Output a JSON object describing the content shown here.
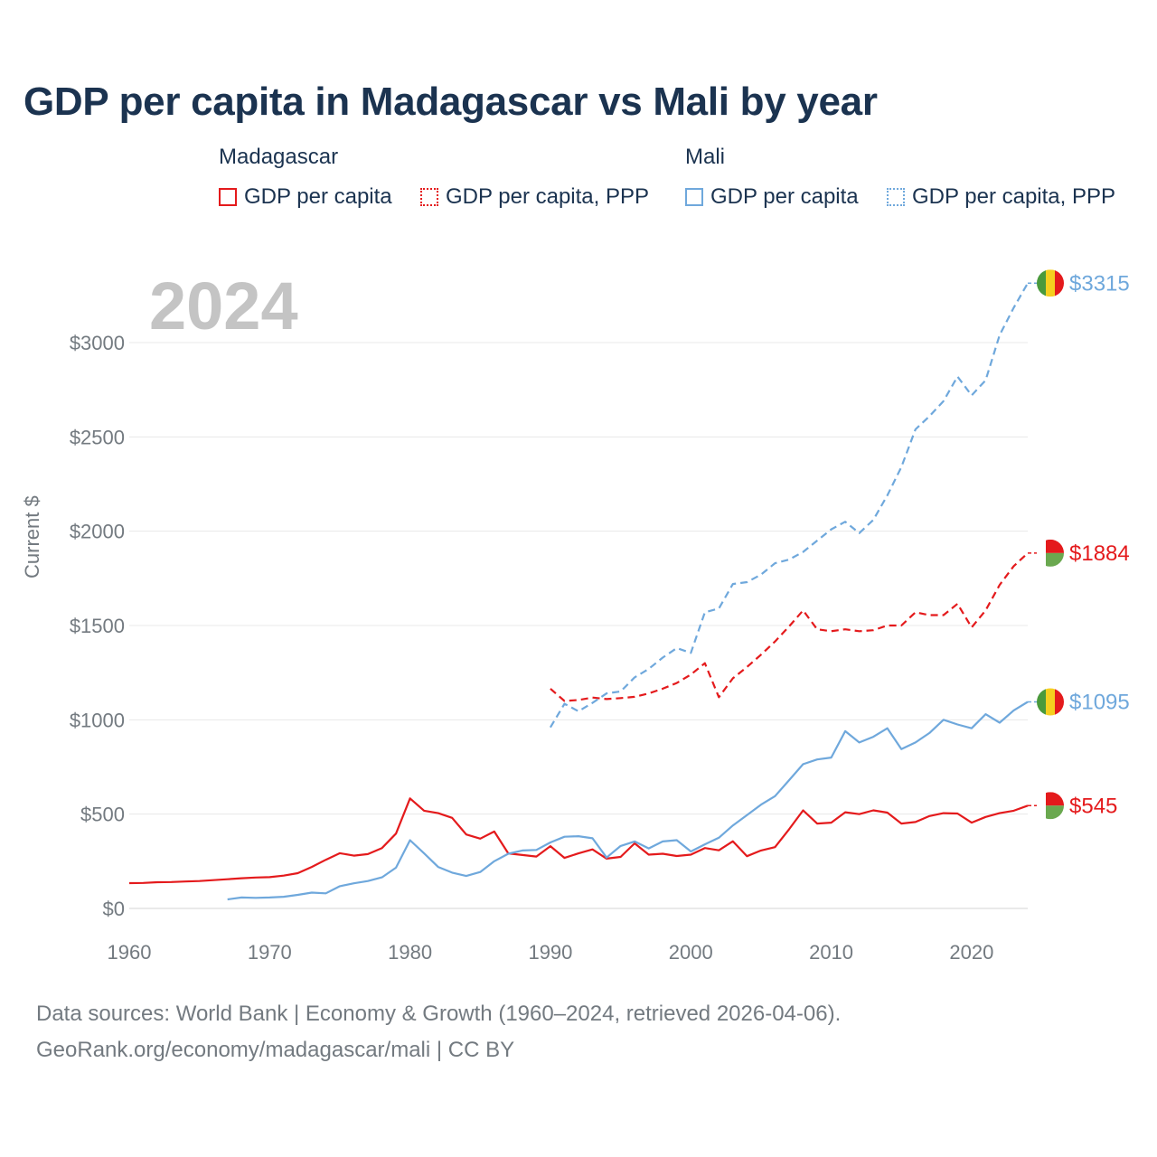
{
  "title": "GDP per capita in Madagascar vs Mali by year",
  "legend": {
    "madagascar": {
      "country": "Madagascar",
      "gdp": "GDP per capita",
      "ppp": "GDP per capita, PPP",
      "color": "#e41a1c"
    },
    "mali": {
      "country": "Mali",
      "gdp": "GDP per capita",
      "ppp": "GDP per capita, PPP",
      "color": "#6fa8dc"
    }
  },
  "year_label": "2024",
  "footer": {
    "line1": "Data sources: World Bank | Economy & Growth (1960–2024, retrieved 2026-04-06).",
    "line2": "GeoRank.org/economy/madagascar/mali | CC BY"
  },
  "chart_data": {
    "type": "line",
    "title": "GDP per capita in Madagascar vs Mali by year",
    "xlabel": "",
    "ylabel": "Current $",
    "xlim": [
      1960,
      2024
    ],
    "ylim": [
      0,
      3000
    ],
    "x_ticks": [
      {
        "value": 1960,
        "label": "1960"
      },
      {
        "value": 1970,
        "label": "1970"
      },
      {
        "value": 1980,
        "label": "1980"
      },
      {
        "value": 1990,
        "label": "1990"
      },
      {
        "value": 2000,
        "label": "2000"
      },
      {
        "value": 2010,
        "label": "2010"
      },
      {
        "value": 2020,
        "label": "2020"
      }
    ],
    "y_ticks": [
      {
        "value": 0,
        "label": "$0"
      },
      {
        "value": 500,
        "label": "$500"
      },
      {
        "value": 1000,
        "label": "$1000"
      },
      {
        "value": 1500,
        "label": "$1500"
      },
      {
        "value": 2000,
        "label": "$2000"
      },
      {
        "value": 2500,
        "label": "$2500"
      },
      {
        "value": 3000,
        "label": "$3000"
      }
    ],
    "grid": true,
    "series": [
      {
        "name": "Madagascar GDP per capita",
        "country": "madagascar",
        "style": "solid",
        "color": "#e41a1c",
        "end_label": "$545",
        "x": [
          1960,
          1961,
          1962,
          1963,
          1964,
          1965,
          1966,
          1967,
          1968,
          1969,
          1970,
          1971,
          1972,
          1973,
          1974,
          1975,
          1976,
          1977,
          1978,
          1979,
          1980,
          1981,
          1982,
          1983,
          1984,
          1985,
          1986,
          1987,
          1988,
          1989,
          1990,
          1991,
          1992,
          1993,
          1994,
          1995,
          1996,
          1997,
          1998,
          1999,
          2000,
          2001,
          2002,
          2003,
          2004,
          2005,
          2006,
          2007,
          2008,
          2009,
          2010,
          2011,
          2012,
          2013,
          2014,
          2015,
          2016,
          2017,
          2018,
          2019,
          2020,
          2021,
          2022,
          2023,
          2024
        ],
        "values": [
          134,
          135,
          139,
          140,
          143,
          145,
          150,
          155,
          160,
          164,
          166,
          174,
          187,
          220,
          258,
          293,
          280,
          288,
          320,
          397,
          583,
          518,
          505,
          480,
          392,
          370,
          408,
          292,
          283,
          275,
          330,
          268,
          292,
          313,
          264,
          273,
          345,
          285,
          290,
          278,
          285,
          320,
          308,
          356,
          277,
          307,
          325,
          420,
          520,
          450,
          455,
          510,
          500,
          520,
          508,
          450,
          458,
          490,
          505,
          503,
          455,
          485,
          505,
          518,
          545
        ]
      },
      {
        "name": "Madagascar GDP per capita, PPP",
        "country": "madagascar",
        "style": "dashed",
        "color": "#e41a1c",
        "end_label": "$1884",
        "x": [
          1990,
          1991,
          1992,
          1993,
          1994,
          1995,
          1996,
          1997,
          1998,
          1999,
          2000,
          2001,
          2002,
          2003,
          2004,
          2005,
          2006,
          2007,
          2008,
          2009,
          2010,
          2011,
          2012,
          2013,
          2014,
          2015,
          2016,
          2017,
          2018,
          2019,
          2020,
          2021,
          2022,
          2023,
          2024
        ],
        "values": [
          1165,
          1100,
          1105,
          1118,
          1110,
          1115,
          1122,
          1140,
          1165,
          1195,
          1240,
          1300,
          1120,
          1220,
          1280,
          1345,
          1415,
          1495,
          1580,
          1480,
          1470,
          1480,
          1470,
          1475,
          1500,
          1500,
          1570,
          1555,
          1555,
          1615,
          1490,
          1580,
          1715,
          1815,
          1884
        ]
      },
      {
        "name": "Mali GDP per capita",
        "country": "mali",
        "style": "solid",
        "color": "#6fa8dc",
        "end_label": "$1095",
        "x": [
          1967,
          1968,
          1969,
          1970,
          1971,
          1972,
          1973,
          1974,
          1975,
          1976,
          1977,
          1978,
          1979,
          1980,
          1981,
          1982,
          1983,
          1984,
          1985,
          1986,
          1987,
          1988,
          1989,
          1990,
          1991,
          1992,
          1993,
          1994,
          1995,
          1996,
          1997,
          1998,
          1999,
          2000,
          2001,
          2002,
          2003,
          2004,
          2005,
          2006,
          2007,
          2008,
          2009,
          2010,
          2011,
          2012,
          2013,
          2014,
          2015,
          2016,
          2017,
          2018,
          2019,
          2020,
          2021,
          2022,
          2023,
          2024
        ],
        "values": [
          48,
          58,
          56,
          58,
          62,
          72,
          84,
          80,
          118,
          133,
          145,
          165,
          216,
          362,
          292,
          220,
          190,
          172,
          193,
          250,
          290,
          307,
          310,
          350,
          380,
          383,
          372,
          270,
          331,
          355,
          318,
          355,
          362,
          302,
          340,
          375,
          440,
          495,
          550,
          595,
          680,
          765,
          790,
          800,
          940,
          880,
          910,
          955,
          845,
          880,
          930,
          1000,
          975,
          955,
          1030,
          985,
          1050,
          1095
        ]
      },
      {
        "name": "Mali GDP per capita, PPP",
        "country": "mali",
        "style": "dashed",
        "color": "#6fa8dc",
        "end_label": "$3315",
        "x": [
          1990,
          1991,
          1992,
          1993,
          1994,
          1995,
          1996,
          1997,
          1998,
          1999,
          2000,
          2001,
          2002,
          2003,
          2004,
          2005,
          2006,
          2007,
          2008,
          2009,
          2010,
          2011,
          2012,
          2013,
          2014,
          2015,
          2016,
          2017,
          2018,
          2019,
          2020,
          2021,
          2022,
          2023,
          2024
        ],
        "values": [
          960,
          1085,
          1045,
          1090,
          1140,
          1150,
          1225,
          1270,
          1330,
          1380,
          1355,
          1570,
          1590,
          1720,
          1730,
          1770,
          1830,
          1850,
          1890,
          1950,
          2010,
          2050,
          1990,
          2060,
          2190,
          2340,
          2540,
          2610,
          2690,
          2820,
          2720,
          2800,
          3040,
          3185,
          3315
        ]
      }
    ]
  }
}
